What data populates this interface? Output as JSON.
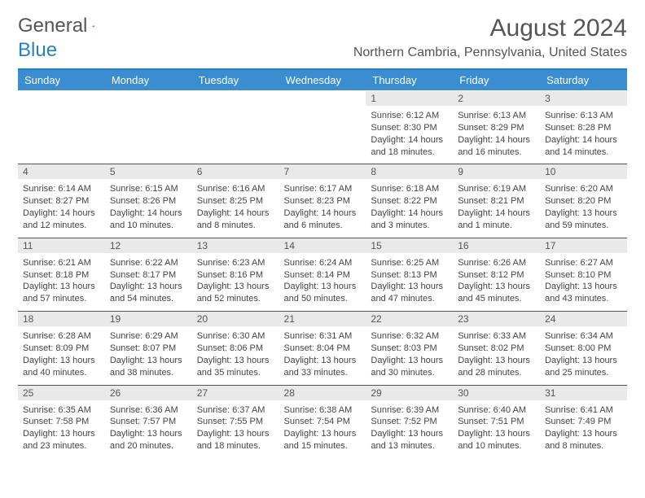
{
  "brand": {
    "partA": "General",
    "partB": "Blue"
  },
  "header": {
    "title": "August 2024",
    "location": "Northern Cambria, Pennsylvania, United States"
  },
  "colors": {
    "header_bg": "#3a8dcf",
    "header_border": "#2a7fbf",
    "daynum_bg": "#e9e9e9",
    "text": "#555555"
  },
  "dayNames": [
    "Sunday",
    "Monday",
    "Tuesday",
    "Wednesday",
    "Thursday",
    "Friday",
    "Saturday"
  ],
  "weeks": [
    [
      null,
      null,
      null,
      null,
      {
        "n": "1",
        "sr": "6:12 AM",
        "ss": "8:30 PM",
        "dl": "14 hours and 18 minutes."
      },
      {
        "n": "2",
        "sr": "6:13 AM",
        "ss": "8:29 PM",
        "dl": "14 hours and 16 minutes."
      },
      {
        "n": "3",
        "sr": "6:13 AM",
        "ss": "8:28 PM",
        "dl": "14 hours and 14 minutes."
      }
    ],
    [
      {
        "n": "4",
        "sr": "6:14 AM",
        "ss": "8:27 PM",
        "dl": "14 hours and 12 minutes."
      },
      {
        "n": "5",
        "sr": "6:15 AM",
        "ss": "8:26 PM",
        "dl": "14 hours and 10 minutes."
      },
      {
        "n": "6",
        "sr": "6:16 AM",
        "ss": "8:25 PM",
        "dl": "14 hours and 8 minutes."
      },
      {
        "n": "7",
        "sr": "6:17 AM",
        "ss": "8:23 PM",
        "dl": "14 hours and 6 minutes."
      },
      {
        "n": "8",
        "sr": "6:18 AM",
        "ss": "8:22 PM",
        "dl": "14 hours and 3 minutes."
      },
      {
        "n": "9",
        "sr": "6:19 AM",
        "ss": "8:21 PM",
        "dl": "14 hours and 1 minute."
      },
      {
        "n": "10",
        "sr": "6:20 AM",
        "ss": "8:20 PM",
        "dl": "13 hours and 59 minutes."
      }
    ],
    [
      {
        "n": "11",
        "sr": "6:21 AM",
        "ss": "8:18 PM",
        "dl": "13 hours and 57 minutes."
      },
      {
        "n": "12",
        "sr": "6:22 AM",
        "ss": "8:17 PM",
        "dl": "13 hours and 54 minutes."
      },
      {
        "n": "13",
        "sr": "6:23 AM",
        "ss": "8:16 PM",
        "dl": "13 hours and 52 minutes."
      },
      {
        "n": "14",
        "sr": "6:24 AM",
        "ss": "8:14 PM",
        "dl": "13 hours and 50 minutes."
      },
      {
        "n": "15",
        "sr": "6:25 AM",
        "ss": "8:13 PM",
        "dl": "13 hours and 47 minutes."
      },
      {
        "n": "16",
        "sr": "6:26 AM",
        "ss": "8:12 PM",
        "dl": "13 hours and 45 minutes."
      },
      {
        "n": "17",
        "sr": "6:27 AM",
        "ss": "8:10 PM",
        "dl": "13 hours and 43 minutes."
      }
    ],
    [
      {
        "n": "18",
        "sr": "6:28 AM",
        "ss": "8:09 PM",
        "dl": "13 hours and 40 minutes."
      },
      {
        "n": "19",
        "sr": "6:29 AM",
        "ss": "8:07 PM",
        "dl": "13 hours and 38 minutes."
      },
      {
        "n": "20",
        "sr": "6:30 AM",
        "ss": "8:06 PM",
        "dl": "13 hours and 35 minutes."
      },
      {
        "n": "21",
        "sr": "6:31 AM",
        "ss": "8:04 PM",
        "dl": "13 hours and 33 minutes."
      },
      {
        "n": "22",
        "sr": "6:32 AM",
        "ss": "8:03 PM",
        "dl": "13 hours and 30 minutes."
      },
      {
        "n": "23",
        "sr": "6:33 AM",
        "ss": "8:02 PM",
        "dl": "13 hours and 28 minutes."
      },
      {
        "n": "24",
        "sr": "6:34 AM",
        "ss": "8:00 PM",
        "dl": "13 hours and 25 minutes."
      }
    ],
    [
      {
        "n": "25",
        "sr": "6:35 AM",
        "ss": "7:58 PM",
        "dl": "13 hours and 23 minutes."
      },
      {
        "n": "26",
        "sr": "6:36 AM",
        "ss": "7:57 PM",
        "dl": "13 hours and 20 minutes."
      },
      {
        "n": "27",
        "sr": "6:37 AM",
        "ss": "7:55 PM",
        "dl": "13 hours and 18 minutes."
      },
      {
        "n": "28",
        "sr": "6:38 AM",
        "ss": "7:54 PM",
        "dl": "13 hours and 15 minutes."
      },
      {
        "n": "29",
        "sr": "6:39 AM",
        "ss": "7:52 PM",
        "dl": "13 hours and 13 minutes."
      },
      {
        "n": "30",
        "sr": "6:40 AM",
        "ss": "7:51 PM",
        "dl": "13 hours and 10 minutes."
      },
      {
        "n": "31",
        "sr": "6:41 AM",
        "ss": "7:49 PM",
        "dl": "13 hours and 8 minutes."
      }
    ]
  ],
  "labels": {
    "sunrise": "Sunrise: ",
    "sunset": "Sunset: ",
    "daylight": "Daylight: "
  }
}
